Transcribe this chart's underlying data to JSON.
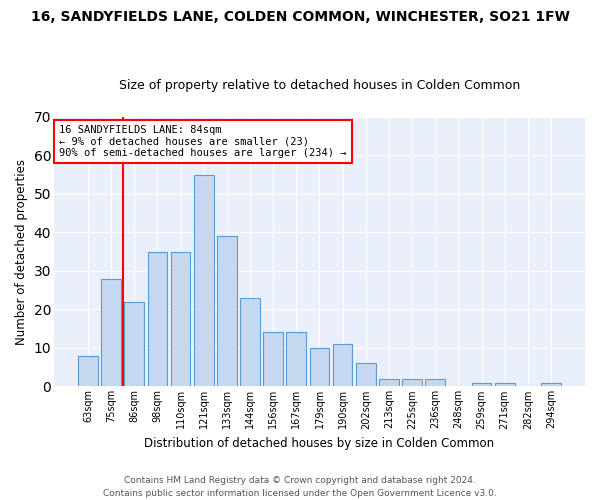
{
  "title": "16, SANDYFIELDS LANE, COLDEN COMMON, WINCHESTER, SO21 1FW",
  "subtitle": "Size of property relative to detached houses in Colden Common",
  "xlabel": "Distribution of detached houses by size in Colden Common",
  "ylabel": "Number of detached properties",
  "categories": [
    "63sqm",
    "75sqm",
    "86sqm",
    "98sqm",
    "110sqm",
    "121sqm",
    "133sqm",
    "144sqm",
    "156sqm",
    "167sqm",
    "179sqm",
    "190sqm",
    "202sqm",
    "213sqm",
    "225sqm",
    "236sqm",
    "248sqm",
    "259sqm",
    "271sqm",
    "282sqm",
    "294sqm"
  ],
  "values": [
    8,
    28,
    22,
    35,
    35,
    55,
    39,
    23,
    14,
    14,
    10,
    11,
    6,
    2,
    2,
    2,
    0,
    1,
    1,
    0,
    1
  ],
  "bar_color": "#c5d8f0",
  "bar_edge_color": "#5b9bd5",
  "vline_color": "red",
  "vline_pos": 1.5,
  "annotation_text_line1": "16 SANDYFIELDS LANE: 84sqm",
  "annotation_text_line2": "← 9% of detached houses are smaller (23)",
  "annotation_text_line3": "90% of semi-detached houses are larger (234) →",
  "ylim": [
    0,
    70
  ],
  "yticks": [
    0,
    10,
    20,
    30,
    40,
    50,
    60,
    70
  ],
  "background_color": "#eaf0fb",
  "grid_color": "#ffffff",
  "footer_line1": "Contains HM Land Registry data © Crown copyright and database right 2024.",
  "footer_line2": "Contains public sector information licensed under the Open Government Licence v3.0.",
  "title_fontsize": 10,
  "subtitle_fontsize": 9,
  "xlabel_fontsize": 8.5,
  "ylabel_fontsize": 8.5,
  "tick_fontsize": 7,
  "annotation_fontsize": 7.5,
  "footer_fontsize": 6.5
}
